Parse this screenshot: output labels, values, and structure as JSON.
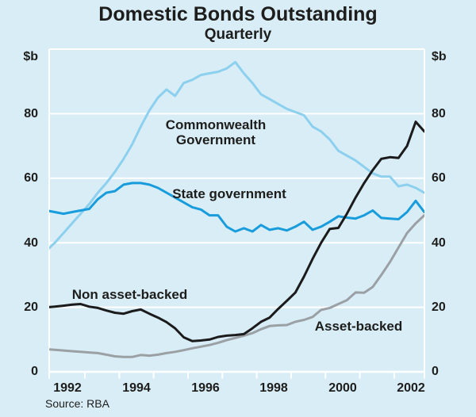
{
  "title": "Domestic Bonds Outstanding",
  "subtitle": "Quarterly",
  "source": "Source: RBA",
  "axis": {
    "unit_left": "$b",
    "unit_right": "$b"
  },
  "colors": {
    "background": "#d9edf7",
    "grid": "#ffffff",
    "text": "#1d1d1b",
    "commonwealth": "#8dd0ee",
    "state": "#189cdc",
    "non_asset_backed": "#1b1b1b",
    "asset_backed": "#9aa0a4"
  },
  "chart_data": {
    "type": "line",
    "title": "Domestic Bonds Outstanding",
    "subtitle": "Quarterly",
    "xlabel": "",
    "ylabel": "$b",
    "ylim": [
      0,
      100
    ],
    "y_ticks": [
      0,
      20,
      40,
      60,
      80
    ],
    "grid": "horizontal-white",
    "legend": "inline-labels",
    "x_start": 1991.875,
    "x_step_years": 0.25,
    "x_tick_years": [
      1993,
      1994,
      1995,
      1996,
      1997,
      1998,
      1999,
      2000,
      2001,
      2002
    ],
    "x_label_years": [
      1992,
      1994,
      1996,
      1998,
      2000,
      2002
    ],
    "series": [
      {
        "name": "Commonwealth Government",
        "color": "#8dd0ee",
        "values": [
          37.5,
          40,
          43,
          46,
          49,
          52,
          55.5,
          58.5,
          62,
          66,
          70.5,
          76,
          81,
          85,
          87.5,
          85.5,
          89.5,
          90.5,
          92,
          92.5,
          93,
          94,
          96,
          92.5,
          89.5,
          86,
          84.5,
          83,
          81.5,
          80.5,
          79.5,
          76,
          74.5,
          72,
          68.5,
          67,
          65.5,
          63.5,
          61.5,
          60.5,
          60.5,
          57.5,
          58,
          57,
          55.5
        ]
      },
      {
        "name": "State government",
        "color": "#189cdc",
        "values": [
          50,
          49.5,
          49,
          49.5,
          50,
          50.5,
          53.5,
          55.5,
          56,
          58,
          58.5,
          58.5,
          58,
          57,
          55.5,
          54,
          52.5,
          51,
          50.3,
          48.5,
          48.5,
          45,
          43.5,
          44.5,
          43.5,
          45.5,
          44,
          44.5,
          43.8,
          45,
          46.5,
          44,
          45,
          46.5,
          48.2,
          47.8,
          47.5,
          48.5,
          50,
          47.7,
          47.5,
          47.3,
          49.5,
          53,
          49.5
        ]
      },
      {
        "name": "Asset-backed",
        "color": "#9aa0a4",
        "values": [
          7,
          6.8,
          6.6,
          6.4,
          6.2,
          6,
          5.8,
          5.3,
          4.8,
          4.6,
          4.6,
          5.2,
          5,
          5.3,
          5.8,
          6.2,
          6.7,
          7.3,
          7.8,
          8.3,
          9,
          9.8,
          10.5,
          11.2,
          12,
          13.2,
          14.2,
          14.4,
          14.5,
          15.5,
          16.1,
          17,
          19.2,
          19.8,
          21,
          22.2,
          24.6,
          24.5,
          26.3,
          30,
          34,
          38.5,
          43,
          46,
          48.5
        ]
      },
      {
        "name": "Non asset-backed",
        "color": "#1b1b1b",
        "values": [
          20,
          20.2,
          20.5,
          20.8,
          21,
          20.2,
          19.8,
          19,
          18.3,
          18,
          18.8,
          19.3,
          18,
          16.8,
          15.4,
          13.5,
          10.7,
          9.5,
          9.7,
          10,
          10.8,
          11.2,
          11.4,
          11.7,
          13.5,
          15.5,
          16.8,
          19.5,
          22,
          24.6,
          29.5,
          35,
          40,
          44.3,
          44.6,
          49,
          54,
          58.5,
          62.5,
          66,
          66.5,
          66.3,
          70,
          77.5,
          74.5
        ]
      }
    ]
  }
}
